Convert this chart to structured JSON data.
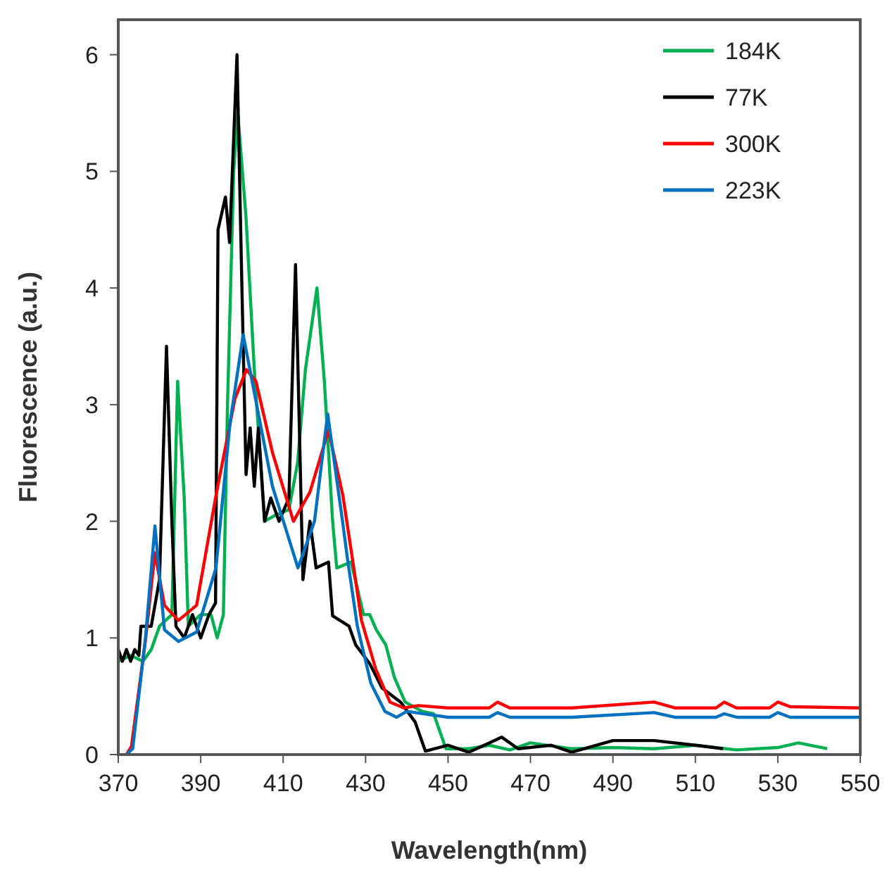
{
  "chart_data": {
    "type": "line",
    "xlabel": "Wavelength(nm)",
    "ylabel": "Fluorescence (a.u.)",
    "xlim": [
      370,
      550
    ],
    "ylim": [
      0,
      6.3
    ],
    "xticks": [
      370,
      390,
      410,
      430,
      450,
      470,
      490,
      510,
      530,
      550
    ],
    "yticks": [
      0,
      1,
      2,
      3,
      4,
      5,
      6
    ],
    "grid": false,
    "legend": "top right",
    "marker": "none",
    "line_style": "solid",
    "series": [
      {
        "name": "184K",
        "color": "#00b050",
        "x": [
          370,
          373,
          376,
          378,
          380,
          383,
          384.4,
          386,
          387,
          390,
          392.5,
          394,
          395.5,
          396.5,
          398,
          399,
          401,
          403,
          405.5,
          408,
          411.4,
          413.5,
          415.4,
          418.2,
          420,
          422,
          423,
          426.5,
          429.5,
          431,
          432.6,
          434.9,
          437,
          439.6,
          443.7,
          446.5,
          449.5,
          455,
          460,
          465,
          470,
          480,
          490,
          500,
          510,
          520,
          530,
          535,
          542
        ],
        "values": [
          0.8,
          0.85,
          0.8,
          0.9,
          1.1,
          1.2,
          3.2,
          2.2,
          1.1,
          1.2,
          1.2,
          1.0,
          1.2,
          3.0,
          5.0,
          5.5,
          4.6,
          3.3,
          2.0,
          2.05,
          2.1,
          2.5,
          3.3,
          4.0,
          3.2,
          2.0,
          1.6,
          1.65,
          1.2,
          1.2,
          1.07,
          0.94,
          0.66,
          0.45,
          0.37,
          0.35,
          0.05,
          0.05,
          0.08,
          0.04,
          0.1,
          0.05,
          0.06,
          0.05,
          0.08,
          0.04,
          0.06,
          0.1,
          0.05
        ]
      },
      {
        "name": "77K",
        "color": "#000000",
        "x": [
          370,
          371,
          372,
          373,
          374,
          375,
          375.5,
          378,
          380,
          381.7,
          383,
          384,
          386,
          388,
          390,
          392,
          393.6,
          394.2,
          396,
          397,
          398.8,
          400,
          401,
          402,
          403,
          404,
          405.5,
          407,
          409,
          411.4,
          413,
          414.8,
          416.5,
          418,
          421,
          422,
          426,
          427.6,
          431,
          434,
          438.5,
          442,
          444.5,
          450,
          455,
          460,
          463,
          467,
          475,
          480,
          490,
          500,
          510,
          516.7
        ],
        "values": [
          0.9,
          0.8,
          0.9,
          0.8,
          0.9,
          0.85,
          1.1,
          1.1,
          1.5,
          3.5,
          2.0,
          1.1,
          1.0,
          1.2,
          1.0,
          1.2,
          1.3,
          4.5,
          4.78,
          4.39,
          6.0,
          4.0,
          2.4,
          2.8,
          2.3,
          2.8,
          2.0,
          2.2,
          2.0,
          2.2,
          4.2,
          1.5,
          2.0,
          1.6,
          1.65,
          1.19,
          1.1,
          0.94,
          0.78,
          0.57,
          0.45,
          0.28,
          0.03,
          0.08,
          0.02,
          0.1,
          0.15,
          0.05,
          0.08,
          0.02,
          0.12,
          0.12,
          0.08,
          0.05
        ]
      },
      {
        "name": "300K",
        "color": "#ff0000",
        "x": [
          372,
          373.2,
          376.6,
          378.9,
          381.2,
          384.6,
          389,
          393.7,
          398.3,
          401.1,
          403.4,
          407.4,
          412.5,
          416.5,
          421,
          424.5,
          426.8,
          429,
          432.5,
          435.9,
          439.3,
          442.8,
          450,
          460,
          462,
          465,
          480,
          500,
          505,
          515,
          517,
          520,
          528,
          530,
          533,
          550
        ],
        "values": [
          0,
          0.07,
          0.98,
          1.73,
          1.28,
          1.15,
          1.28,
          2.22,
          3.05,
          3.3,
          3.2,
          2.59,
          2.0,
          2.25,
          2.78,
          2.22,
          1.68,
          1.15,
          0.73,
          0.45,
          0.4,
          0.42,
          0.4,
          0.4,
          0.45,
          0.4,
          0.4,
          0.45,
          0.4,
          0.4,
          0.45,
          0.4,
          0.4,
          0.45,
          0.41,
          0.4
        ]
      },
      {
        "name": "223K",
        "color": "#0070c0",
        "x": [
          372,
          373.5,
          376.6,
          378.9,
          381.2,
          384.6,
          389,
          393.7,
          397.1,
          400.3,
          404,
          407.4,
          413.6,
          417.6,
          420.8,
          424.4,
          425.6,
          428,
          431.3,
          434.7,
          437.5,
          440,
          450,
          460,
          462,
          465,
          480,
          500,
          505,
          515,
          517,
          520,
          528,
          530,
          533,
          550
        ],
        "values": [
          0,
          0.05,
          1.0,
          1.96,
          1.07,
          0.97,
          1.05,
          1.6,
          2.84,
          3.6,
          2.92,
          2.3,
          1.6,
          2.0,
          2.92,
          2.0,
          1.68,
          1.1,
          0.61,
          0.37,
          0.32,
          0.37,
          0.32,
          0.32,
          0.36,
          0.32,
          0.32,
          0.36,
          0.32,
          0.32,
          0.35,
          0.32,
          0.32,
          0.36,
          0.32,
          0.32
        ]
      }
    ]
  }
}
